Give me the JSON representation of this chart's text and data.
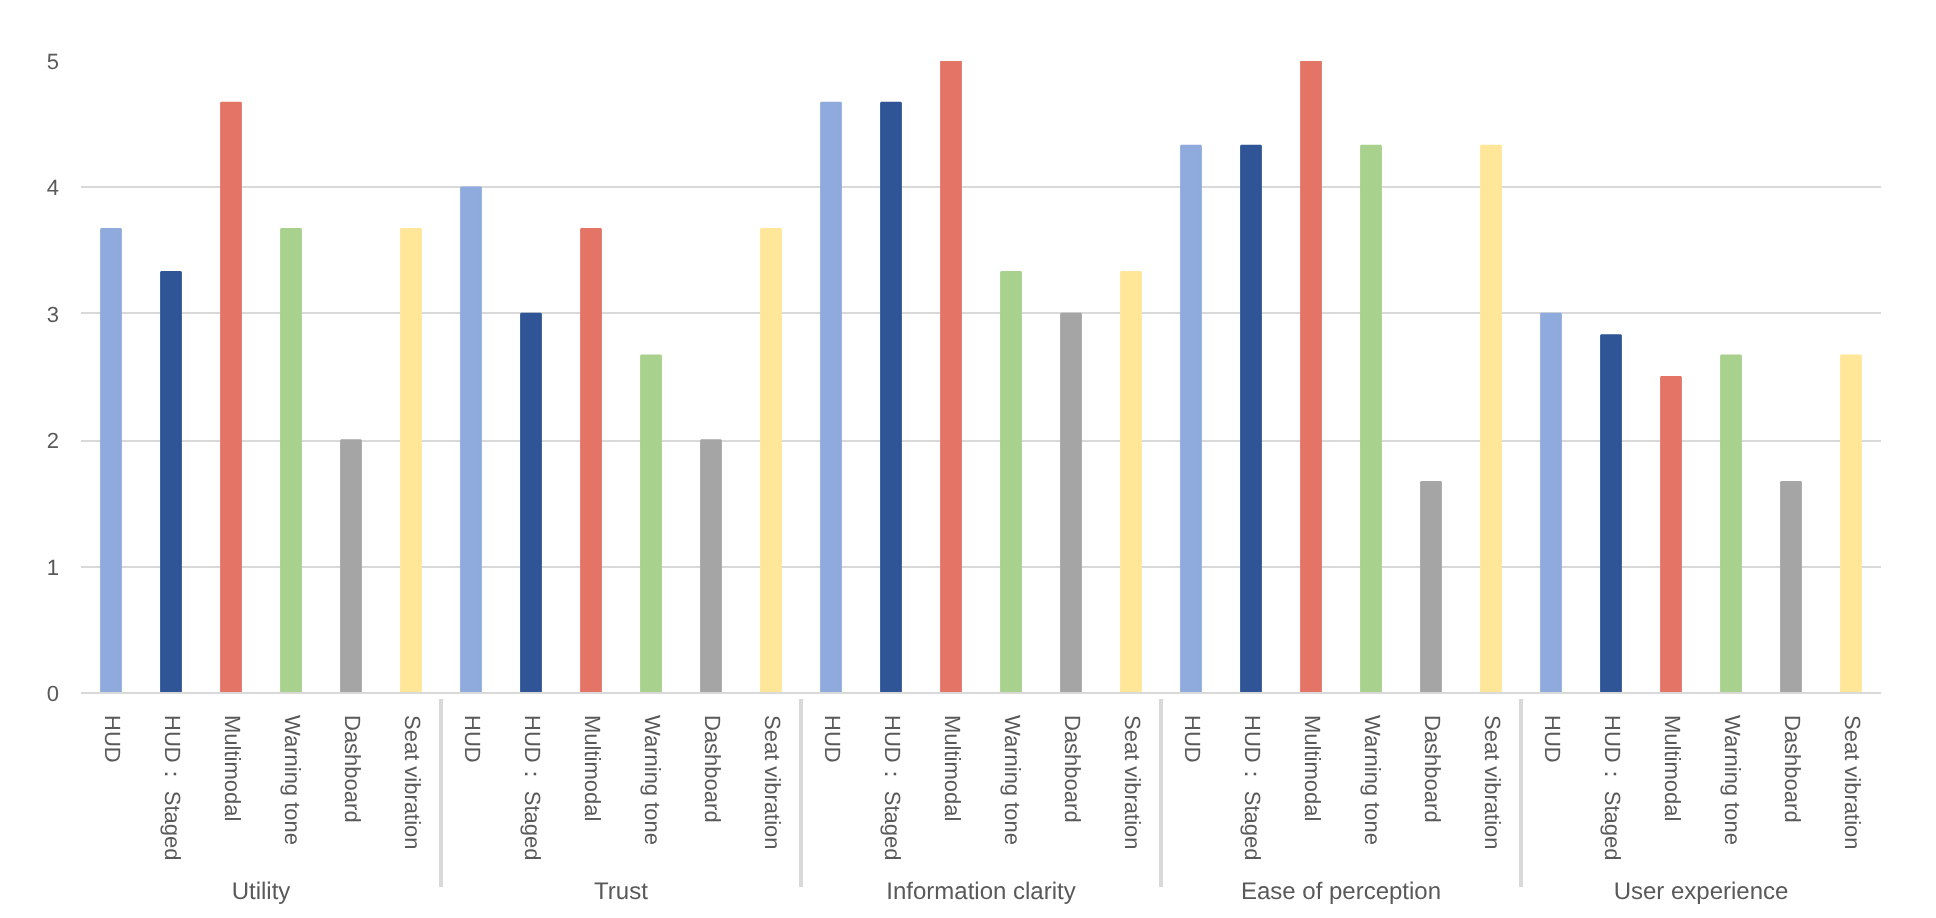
{
  "chart_data": {
    "type": "bar",
    "categories": [
      "Utility",
      "Trust",
      "Information clarity",
      "Ease of perception",
      "User experience"
    ],
    "series": [
      {
        "name": "HUD",
        "color": "#8faadc",
        "values": [
          3.67,
          4,
          4.67,
          4.33,
          3
        ]
      },
      {
        "name": "HUD： Staged",
        "color": "#2f5597",
        "values": [
          3.33,
          3,
          4.67,
          4.33,
          2.83
        ]
      },
      {
        "name": "Multimodal",
        "color": "#e47566",
        "values": [
          4.67,
          3.67,
          5,
          5,
          2.5
        ]
      },
      {
        "name": "Warning tone",
        "color": "#a9d18e",
        "values": [
          3.67,
          2.67,
          3.33,
          4.33,
          2.67
        ]
      },
      {
        "name": "Dashboard",
        "color": "#a5a5a5",
        "values": [
          2,
          2,
          3,
          1.67,
          1.67
        ]
      },
      {
        "name": "Seat vibration",
        "color": "#ffe699",
        "values": [
          3.67,
          3.67,
          3.33,
          4.33,
          2.67
        ]
      }
    ],
    "ylim": [
      0,
      5
    ],
    "yticks": [
      0,
      1,
      2,
      3,
      4,
      5
    ],
    "grid": "y"
  }
}
